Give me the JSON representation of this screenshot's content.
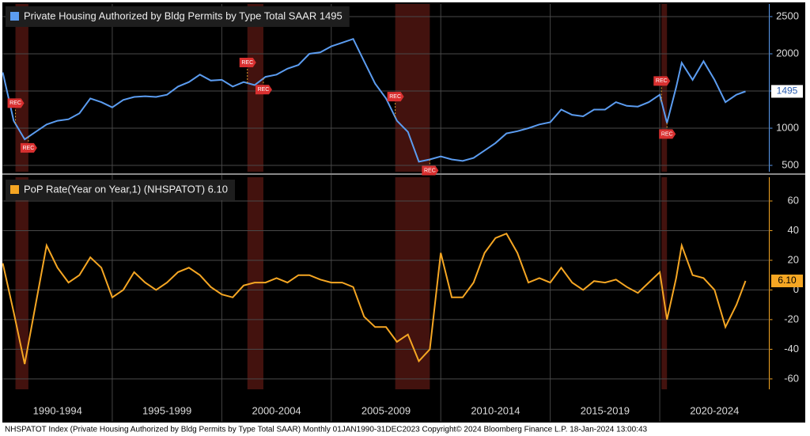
{
  "chart_data": [
    {
      "type": "line",
      "series": [
        {
          "name": "Private Housing Authorized by Bldg Permits by Type Total SAAR 1495",
          "color": "#5b9cf0",
          "values": [
            1750,
            1100,
            850,
            950,
            1050,
            1100,
            1120,
            1200,
            1400,
            1350,
            1280,
            1380,
            1420,
            1430,
            1420,
            1450,
            1560,
            1620,
            1720,
            1640,
            1650,
            1560,
            1620,
            1580,
            1690,
            1720,
            1800,
            1850,
            2000,
            2020,
            2100,
            2150,
            2200,
            1900,
            1600,
            1400,
            1100,
            950,
            550,
            580,
            620,
            580,
            560,
            600,
            700,
            800,
            930,
            960,
            1000,
            1050,
            1080,
            1250,
            1180,
            1160,
            1250,
            1250,
            1350,
            1300,
            1290,
            1350,
            1450,
            1070,
            1550,
            1880,
            1650,
            1900,
            1650,
            1350,
            1450,
            1495
          ]
        }
      ],
      "x": [
        1990,
        1990.5,
        1991,
        1991.5,
        1992,
        1992.5,
        1993,
        1993.5,
        1994,
        1994.5,
        1995,
        1995.5,
        1996,
        1996.5,
        1997,
        1997.5,
        1998,
        1998.5,
        1999,
        1999.5,
        2000,
        2000.5,
        2001,
        2001.5,
        2002,
        2002.5,
        2003,
        2003.5,
        2004,
        2004.5,
        2005,
        2005.5,
        2006,
        2006.5,
        2007,
        2007.5,
        2008,
        2008.5,
        2009,
        2009.5,
        2010,
        2010.5,
        2011,
        2011.5,
        2012,
        2012.5,
        2013,
        2013.5,
        2014,
        2014.5,
        2015,
        2015.5,
        2016,
        2016.5,
        2017,
        2017.5,
        2018,
        2018.5,
        2019,
        2019.5,
        2020,
        2020.33,
        2020.75,
        2021,
        2021.5,
        2022,
        2022.5,
        2023,
        2023.5,
        2023.917
      ],
      "xlim": [
        1990,
        2025
      ],
      "ylim": [
        415,
        2670
      ],
      "yticks": [
        500,
        1000,
        1500,
        2000,
        2500
      ],
      "grid": true,
      "last_label": "1495",
      "recession_label": "REC",
      "recessions": [
        {
          "start": 1990.58,
          "end": 1991.17
        },
        {
          "start": 2001.17,
          "end": 2001.9
        },
        {
          "start": 2007.92,
          "end": 2009.5
        },
        {
          "start": 2020.08,
          "end": 2020.33
        }
      ]
    },
    {
      "type": "line",
      "series": [
        {
          "name": "PoP Rate(Year on Year,1) (NHSPATOT) 6.10",
          "color": "#f5a623",
          "values": [
            18,
            -15,
            -50,
            -10,
            30,
            15,
            5,
            10,
            22,
            15,
            -5,
            0,
            12,
            5,
            0,
            5,
            12,
            15,
            10,
            2,
            -3,
            -5,
            3,
            5,
            5,
            8,
            5,
            10,
            10,
            7,
            5,
            5,
            2,
            -18,
            -25,
            -25,
            -35,
            -30,
            -48,
            -40,
            25,
            -5,
            -5,
            5,
            25,
            35,
            38,
            25,
            5,
            8,
            5,
            15,
            5,
            0,
            6,
            5,
            7,
            2,
            -2,
            5,
            12,
            -20,
            8,
            30,
            10,
            8,
            0,
            -25,
            -10,
            6.1
          ]
        }
      ],
      "x": [
        1990,
        1990.5,
        1991,
        1991.5,
        1992,
        1992.5,
        1993,
        1993.5,
        1994,
        1994.5,
        1995,
        1995.5,
        1996,
        1996.5,
        1997,
        1997.5,
        1998,
        1998.5,
        1999,
        1999.5,
        2000,
        2000.5,
        2001,
        2001.5,
        2002,
        2002.5,
        2003,
        2003.5,
        2004,
        2004.5,
        2005,
        2005.5,
        2006,
        2006.5,
        2007,
        2007.5,
        2008,
        2008.5,
        2009,
        2009.5,
        2010,
        2010.5,
        2011,
        2011.5,
        2012,
        2012.5,
        2013,
        2013.5,
        2014,
        2014.5,
        2015,
        2015.5,
        2016,
        2016.5,
        2017,
        2017.5,
        2018,
        2018.5,
        2019,
        2019.5,
        2020,
        2020.33,
        2020.75,
        2021,
        2021.5,
        2022,
        2022.5,
        2023,
        2023.5,
        2023.917
      ],
      "xlim": [
        1990,
        2025
      ],
      "ylim": [
        -67,
        76
      ],
      "yticks": [
        -60,
        -40,
        -20,
        0,
        20,
        40,
        60
      ],
      "grid": true,
      "last_label": "6.10",
      "xticks": [
        {
          "value": 1992.5,
          "label": "1990-1994"
        },
        {
          "value": 1997.5,
          "label": "1995-1999"
        },
        {
          "value": 2002.5,
          "label": "2000-2004"
        },
        {
          "value": 2007.5,
          "label": "2005-2009"
        },
        {
          "value": 2012.5,
          "label": "2010-2014"
        },
        {
          "value": 2017.5,
          "label": "2015-2019"
        },
        {
          "value": 2022.5,
          "label": "2020-2024"
        }
      ]
    }
  ],
  "footer": "NHSPATOT Index (Private Housing Authorized by Bldg Permits by Type Total SAAR)  Monthly 01JAN1990-31DEC2023  Copyright© 2024 Bloomberg Finance L.P.  18-Jan-2024 13:00:43"
}
